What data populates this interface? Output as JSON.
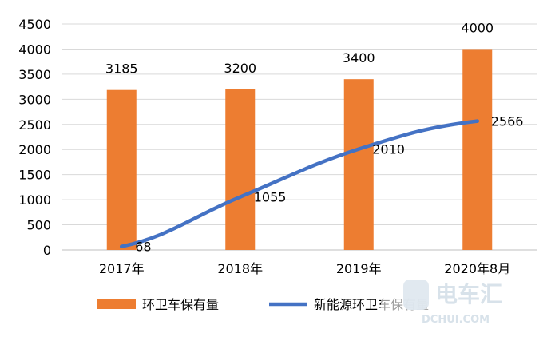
{
  "chart_data": {
    "type": "bar",
    "categories": [
      "2017年",
      "2018年",
      "2019年",
      "2020年8月"
    ],
    "series": [
      {
        "name": "环卫车保有量",
        "type": "bar",
        "color": "#ED7D31",
        "values": [
          3185,
          3200,
          3400,
          4000
        ],
        "data_labels": [
          "3185",
          "3200",
          "3400",
          "4000"
        ]
      },
      {
        "name": "新能源环卫车保有量",
        "type": "line",
        "color": "#4472C4",
        "values": [
          68,
          1055,
          2010,
          2566
        ],
        "data_labels": [
          "68",
          "1055",
          "2010",
          "2566"
        ]
      }
    ],
    "ylim": [
      0,
      4500
    ],
    "y_ticks": [
      "0",
      "500",
      "1000",
      "1500",
      "2000",
      "2500",
      "3000",
      "3500",
      "4000",
      "4500"
    ],
    "grid": true,
    "legend_position": "bottom"
  },
  "watermark": {
    "text": "电车汇",
    "subtext": "DCHUI.COM"
  }
}
